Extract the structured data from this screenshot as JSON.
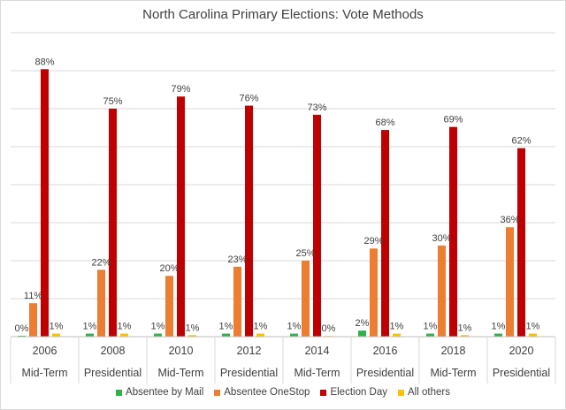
{
  "chart_data": {
    "type": "bar",
    "title": "North Carolina Primary Elections: Vote Methods",
    "categories": [
      "2006",
      "2008",
      "2010",
      "2012",
      "2014",
      "2016",
      "2018",
      "2020"
    ],
    "category_groups": [
      "Mid-Term",
      "Presidential",
      "Mid-Term",
      "Presidential",
      "Mid-Term",
      "Presidential",
      "Mid-Term",
      "Presidential"
    ],
    "ylim": [
      0,
      100
    ],
    "grid": true,
    "legend_position": "bottom",
    "series": [
      {
        "name": "Absentee by Mail",
        "color": "#2eb24a",
        "values": [
          0.3,
          1,
          1,
          1,
          1,
          2,
          1,
          1
        ],
        "labels": [
          "0%",
          "1%",
          "1%",
          "1%",
          "1%",
          "2%",
          "1%",
          "1%"
        ]
      },
      {
        "name": "Absentee OneStop",
        "color": "#ed7d31",
        "values": [
          11,
          22,
          20,
          23,
          25,
          29,
          30,
          36
        ],
        "labels": [
          "11%",
          "22%",
          "20%",
          "23%",
          "25%",
          "29%",
          "30%",
          "36%"
        ]
      },
      {
        "name": "Election Day",
        "color": "#c00000",
        "values": [
          88,
          75,
          79,
          76,
          73,
          68,
          69,
          62
        ],
        "labels": [
          "88%",
          "75%",
          "79%",
          "76%",
          "73%",
          "68%",
          "69%",
          "62%"
        ]
      },
      {
        "name": "All others",
        "color": "#ffc000",
        "values": [
          1,
          1,
          0.5,
          1,
          0.2,
          1,
          0.5,
          1
        ],
        "labels": [
          "1%",
          "1%",
          "1%",
          "1%",
          "0%",
          "1%",
          "1%",
          "1%"
        ]
      }
    ]
  }
}
